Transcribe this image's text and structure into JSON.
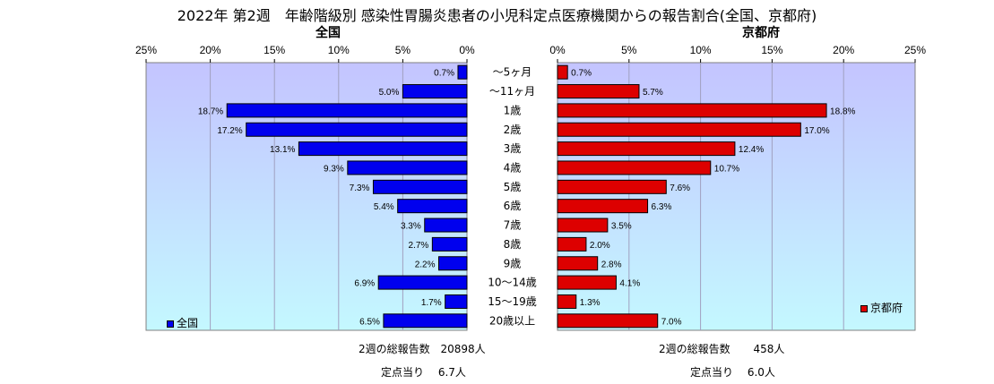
{
  "title": "2022年 第2週　年齢階級別 感染性胃腸炎患者の小児科定点医療機関からの報告割合(全国、京都府)",
  "colors": {
    "national": "#0000ee",
    "kyoto": "#dd0000",
    "plot_left_bg": "#ccccff",
    "plot_right_bg": "#c8f6ff"
  },
  "chart_data": [
    {
      "type": "bar",
      "orientation": "horizontal",
      "title": "全国",
      "xlim": [
        0,
        25
      ],
      "reversed": true,
      "ticks": [
        "25%",
        "20%",
        "15%",
        "10%",
        "5%",
        "0%"
      ],
      "legend_position": "bottom-left",
      "categories": [
        "～5ヶ月",
        "～11ヶ月",
        "1歳",
        "2歳",
        "3歳",
        "4歳",
        "5歳",
        "6歳",
        "7歳",
        "8歳",
        "9歳",
        "10～14歳",
        "15～19歳",
        "20歳以上"
      ],
      "series": [
        {
          "name": "全国",
          "values": [
            0.7,
            5.0,
            18.7,
            17.2,
            13.1,
            9.3,
            7.3,
            5.4,
            3.3,
            2.7,
            2.2,
            6.9,
            1.7,
            6.5
          ],
          "labels": [
            "0.7%",
            "5.0%",
            "18.7%",
            "17.2%",
            "13.1%",
            "9.3%",
            "7.3%",
            "5.4%",
            "3.3%",
            "2.7%",
            "2.2%",
            "6.9%",
            "1.7%",
            "6.5%"
          ]
        }
      ]
    },
    {
      "type": "bar",
      "orientation": "horizontal",
      "title": "京都府",
      "xlim": [
        0,
        25
      ],
      "ticks": [
        "0%",
        "5%",
        "10%",
        "15%",
        "20%",
        "25%"
      ],
      "legend_position": "bottom-right",
      "categories": [
        "～5ヶ月",
        "～11ヶ月",
        "1歳",
        "2歳",
        "3歳",
        "4歳",
        "5歳",
        "6歳",
        "7歳",
        "8歳",
        "9歳",
        "10～14歳",
        "15～19歳",
        "20歳以上"
      ],
      "series": [
        {
          "name": "京都府",
          "values": [
            0.7,
            5.7,
            18.8,
            17.0,
            12.4,
            10.7,
            7.6,
            6.3,
            3.5,
            2.0,
            2.8,
            4.1,
            1.3,
            7.0
          ],
          "labels": [
            "0.7%",
            "5.7%",
            "18.8%",
            "17.0%",
            "12.4%",
            "10.7%",
            "7.6%",
            "6.3%",
            "3.5%",
            "2.0%",
            "2.8%",
            "4.1%",
            "1.3%",
            "7.0%"
          ]
        }
      ]
    }
  ],
  "footer": {
    "national_total_label": "2週の総報告数",
    "national_total_value": "20898人",
    "national_per_label": "定点当り",
    "national_per_value": "6.7人",
    "kyoto_total_label": "2週の総報告数",
    "kyoto_total_value": "458人",
    "kyoto_per_label": "定点当り",
    "kyoto_per_value": "6.0人"
  }
}
